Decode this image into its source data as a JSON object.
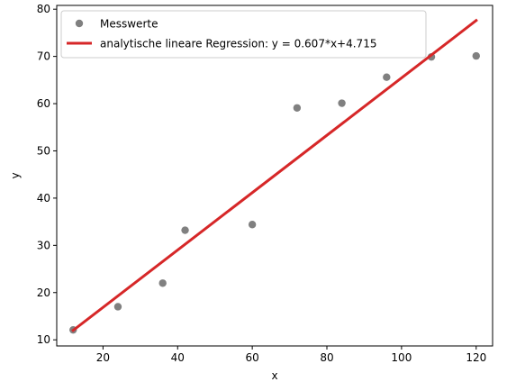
{
  "chart_data": {
    "type": "scatter",
    "title": "",
    "xlabel": "x",
    "ylabel": "y",
    "xlim": [
      7.6,
      124.4
    ],
    "ylim": [
      8.7,
      80.8
    ],
    "xticks": [
      20,
      40,
      60,
      80,
      100,
      120
    ],
    "yticks": [
      10,
      20,
      30,
      40,
      50,
      60,
      70,
      80
    ],
    "grid": false,
    "legend_position": "top-left",
    "series": [
      {
        "name": "Messwerte",
        "kind": "scatter",
        "color": "#808080",
        "x": [
          12,
          24,
          36,
          42,
          60,
          72,
          84,
          96,
          108,
          120
        ],
        "y": [
          12.1,
          17.0,
          22.0,
          33.2,
          34.4,
          59.1,
          60.1,
          65.6,
          69.9,
          70.1
        ]
      },
      {
        "name": "analytische lineare Regression: y = 0.607*x+4.715",
        "kind": "line",
        "color": "#d62728",
        "x": [
          12,
          120
        ],
        "y": [
          12.0,
          77.6
        ]
      }
    ]
  }
}
